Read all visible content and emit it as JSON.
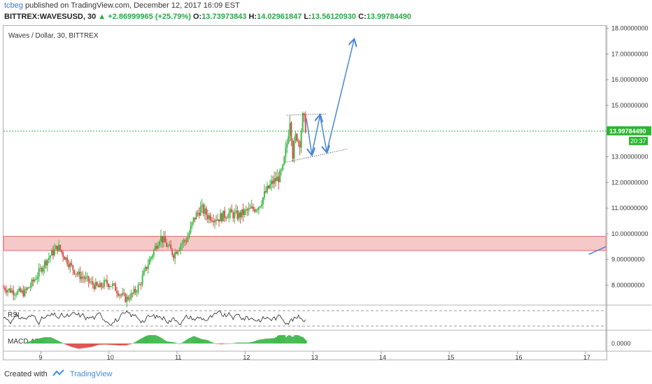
{
  "header": {
    "publisher": "tcbeg",
    "published_text": "published on TradingView.com, December 12, 2017 16:09 EST",
    "symbol": "BITTREX:WAVESUSD, 30",
    "change": "▲ +2.86999965 (+25.79%)",
    "o_label": "O:",
    "o_value": "13.73973843",
    "h_label": "H:",
    "h_value": "14.02961847",
    "l_label": "L:",
    "l_value": "13.56120930",
    "c_label": "C:",
    "c_value": "13.99784490"
  },
  "chart_data": {
    "type": "candlestick",
    "title": "Waves / Dollar, 30, BITTREX",
    "x_ticks": [
      "9",
      "10",
      "11",
      "12",
      "13",
      "14",
      "15",
      "16",
      "17"
    ],
    "x_range_days": [
      8.45,
      17.3
    ],
    "y_ticks": [
      "8.00000000",
      "9.00000000",
      "10.00000000",
      "11.00000000",
      "12.00000000",
      "13.00000000",
      "14.00000000",
      "15.00000000",
      "16.00000000",
      "17.00000000",
      "18.00000000"
    ],
    "ylim": [
      7.25,
      18.1
    ],
    "last_price": "13.99784490",
    "last_price_value": 13.9978449,
    "countdown": "20:37",
    "price_path": [
      [
        8.45,
        7.9
      ],
      [
        8.6,
        7.75
      ],
      [
        8.75,
        7.7
      ],
      [
        8.85,
        8.0
      ],
      [
        8.95,
        8.4
      ],
      [
        9.05,
        8.85
      ],
      [
        9.15,
        9.2
      ],
      [
        9.25,
        9.5
      ],
      [
        9.35,
        9.1
      ],
      [
        9.45,
        8.7
      ],
      [
        9.55,
        8.4
      ],
      [
        9.65,
        8.25
      ],
      [
        9.75,
        8.05
      ],
      [
        9.85,
        7.9
      ],
      [
        9.95,
        8.1
      ],
      [
        10.05,
        8.0
      ],
      [
        10.15,
        7.7
      ],
      [
        10.25,
        7.45
      ],
      [
        10.35,
        7.65
      ],
      [
        10.45,
        8.0
      ],
      [
        10.55,
        8.7
      ],
      [
        10.65,
        9.3
      ],
      [
        10.75,
        9.9
      ],
      [
        10.85,
        9.55
      ],
      [
        10.95,
        9.2
      ],
      [
        11.05,
        9.6
      ],
      [
        11.15,
        9.8
      ],
      [
        11.25,
        10.6
      ],
      [
        11.35,
        11.0
      ],
      [
        11.45,
        10.7
      ],
      [
        11.6,
        10.6
      ],
      [
        11.75,
        10.8
      ],
      [
        11.9,
        10.7
      ],
      [
        12.0,
        10.85
      ],
      [
        12.1,
        10.95
      ],
      [
        12.2,
        11.1
      ],
      [
        12.3,
        11.6
      ],
      [
        12.4,
        12.0
      ],
      [
        12.5,
        12.2
      ],
      [
        12.55,
        12.45
      ],
      [
        12.62,
        13.6
      ],
      [
        12.66,
        14.55
      ],
      [
        12.7,
        13.1
      ],
      [
        12.75,
        13.9
      ],
      [
        12.8,
        13.5
      ],
      [
        12.85,
        14.6
      ],
      [
        12.9,
        14.0
      ]
    ],
    "resistance_zone": {
      "low": 9.35,
      "high": 9.9
    },
    "pattern_lines": [
      {
        "from": [
          12.62,
          14.62
        ],
        "to": [
          13.2,
          14.67
        ]
      },
      {
        "from": [
          12.62,
          12.8
        ],
        "to": [
          13.5,
          13.3
        ]
      }
    ],
    "projection_path": [
      [
        12.9,
        14.5
      ],
      [
        12.98,
        13.1
      ],
      [
        13.1,
        14.6
      ],
      [
        13.2,
        13.2
      ],
      [
        13.6,
        17.55
      ]
    ],
    "projection_edge_line": {
      "from": [
        17.05,
        9.2
      ],
      "to": [
        17.3,
        9.5
      ]
    },
    "rsi": {
      "label": "RSI"
    },
    "macd": {
      "label": "MACD 4C",
      "zero_label": "0.0000"
    },
    "colors": {
      "up": "#26a69a",
      "up_green": "#3fb94a",
      "down": "#e04b4b",
      "zone_fill": "#f4bcbc",
      "zone_edge": "#e36b6b",
      "projection": "#4a86d4",
      "last_price_line": "#26b838",
      "label_bg": "#2bb531"
    }
  },
  "footer": {
    "created_with": "Created with",
    "brand": "TradingView"
  }
}
